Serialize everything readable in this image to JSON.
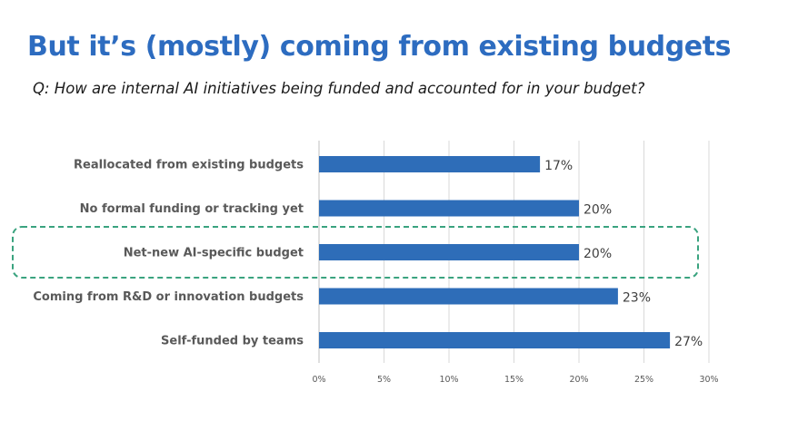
{
  "header": {
    "title": "But it’s (mostly) coming from existing budgets",
    "subtitle": "Q: How are internal AI initiatives being funded and accounted for in your budget?"
  },
  "colors": {
    "title": "#2d6cc0",
    "bar": "#2e6db8",
    "highlight": "#3aa37f"
  },
  "chart_data": {
    "type": "bar",
    "orientation": "horizontal",
    "categories": [
      "Reallocated from existing budgets",
      "No formal funding or tracking yet",
      "Net-new AI-specific budget",
      "Coming from R&D or innovation budgets",
      "Self-funded by teams"
    ],
    "values": [
      17,
      20,
      20,
      23,
      27
    ],
    "value_labels": [
      "17%",
      "20%",
      "20%",
      "23%",
      "27%"
    ],
    "x_ticks": [
      "0%",
      "5%",
      "10%",
      "15%",
      "20%",
      "25%",
      "30%"
    ],
    "xlim": [
      0,
      30
    ],
    "grid": true,
    "highlighted_category": "Net-new AI-specific budget"
  }
}
